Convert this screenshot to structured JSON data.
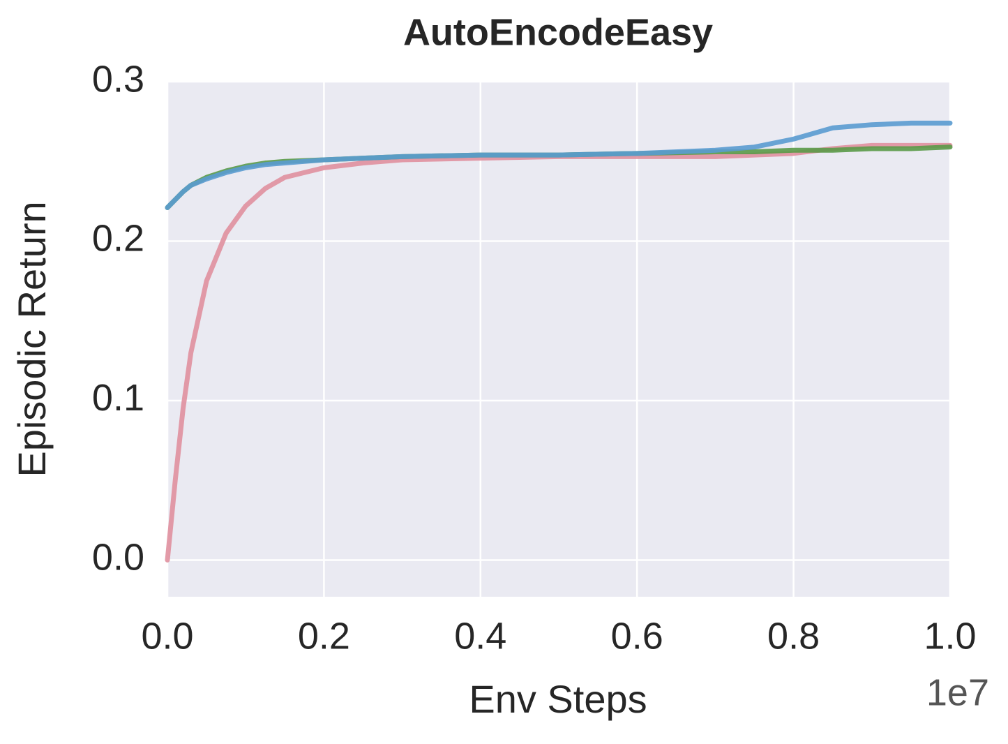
{
  "chart_data": {
    "type": "line",
    "title": "AutoEncodeEasy",
    "x_label": "Env Steps",
    "y_label": "Episodic Return",
    "x_offset_label": "1e7",
    "x": [
      0,
      0.01,
      0.02,
      0.03,
      0.05,
      0.075,
      0.1,
      0.125,
      0.15,
      0.2,
      0.25,
      0.3,
      0.4,
      0.5,
      0.6,
      0.7,
      0.75,
      0.8,
      0.85,
      0.9,
      0.95,
      1.0
    ],
    "series": [
      {
        "color": "#e0909f",
        "values": [
          0,
          0.05,
          0.095,
          0.13,
          0.175,
          0.205,
          0.222,
          0.233,
          0.24,
          0.246,
          0.249,
          0.251,
          0.252,
          0.253,
          0.253,
          0.253,
          0.254,
          0.255,
          0.258,
          0.26,
          0.26,
          0.26
        ]
      },
      {
        "color": "#5a9a48",
        "values": [
          0.221,
          0.226,
          0.231,
          0.235,
          0.24,
          0.244,
          0.247,
          0.249,
          0.25,
          0.251,
          0.252,
          0.253,
          0.254,
          0.254,
          0.255,
          0.256,
          0.256,
          0.257,
          0.257,
          0.258,
          0.258,
          0.259
        ]
      },
      {
        "color": "#5a9bd0",
        "values": [
          0.221,
          0.226,
          0.231,
          0.235,
          0.239,
          0.243,
          0.246,
          0.248,
          0.249,
          0.251,
          0.252,
          0.253,
          0.254,
          0.254,
          0.255,
          0.257,
          0.259,
          0.264,
          0.271,
          0.273,
          0.274,
          0.274
        ]
      }
    ],
    "xlim": [
      0,
      1.0
    ],
    "ylim": [
      -0.023,
      0.3
    ],
    "xticks": [
      {
        "value": 0,
        "label": "0.0"
      },
      0.2,
      0.4,
      0.6,
      0.8,
      {
        "value": 1.0,
        "label": "1.0"
      }
    ],
    "yticks": [
      {
        "value": 0,
        "label": "0.0"
      },
      0.1,
      0.2,
      0.3
    ],
    "grid": true
  }
}
